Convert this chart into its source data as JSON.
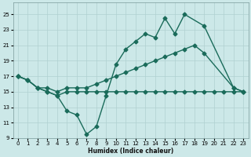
{
  "xlabel": "Humidex (Indice chaleur)",
  "xlim": [
    -0.5,
    23.5
  ],
  "ylim": [
    9,
    26.5
  ],
  "yticks": [
    9,
    11,
    13,
    15,
    17,
    19,
    21,
    23,
    25
  ],
  "xticks": [
    0,
    1,
    2,
    3,
    4,
    5,
    6,
    7,
    8,
    9,
    10,
    11,
    12,
    13,
    14,
    15,
    16,
    17,
    18,
    19,
    20,
    21,
    22,
    23
  ],
  "bg_color": "#cce8e8",
  "grid_color": "#b0d0d0",
  "line_color": "#1a6b5a",
  "line1_x": [
    0,
    1,
    2,
    3,
    4,
    5,
    6,
    7,
    8,
    9,
    10,
    11,
    12,
    13,
    14,
    15,
    16,
    17,
    18,
    19,
    20,
    21,
    22,
    23
  ],
  "line1_y": [
    17,
    16.5,
    15.5,
    15,
    14.5,
    15,
    15,
    15,
    15,
    15,
    15,
    15,
    15,
    15,
    15,
    15,
    15,
    15,
    15,
    15,
    15,
    15,
    15,
    15
  ],
  "line2_x": [
    0,
    1,
    2,
    3,
    4,
    5,
    6,
    7,
    8,
    9,
    10,
    11,
    12,
    13,
    14,
    15,
    16,
    17,
    19,
    22,
    23
  ],
  "line2_y": [
    17,
    16.5,
    15.5,
    15,
    14.5,
    12.5,
    12,
    9.5,
    10.5,
    14.5,
    18.5,
    20.5,
    21.5,
    22.5,
    22,
    24.5,
    22.5,
    25,
    23.5,
    15.5,
    15
  ],
  "line3_x": [
    0,
    1,
    2,
    3,
    4,
    5,
    6,
    7,
    8,
    9,
    10,
    11,
    12,
    13,
    14,
    15,
    16,
    17,
    18,
    19,
    22,
    23
  ],
  "line3_y": [
    17,
    16.5,
    15.5,
    15.5,
    15,
    15.5,
    15.5,
    15.5,
    16,
    16.5,
    17,
    17.5,
    18,
    18.5,
    19,
    19.5,
    20,
    20.5,
    21,
    20,
    15.5,
    15
  ]
}
